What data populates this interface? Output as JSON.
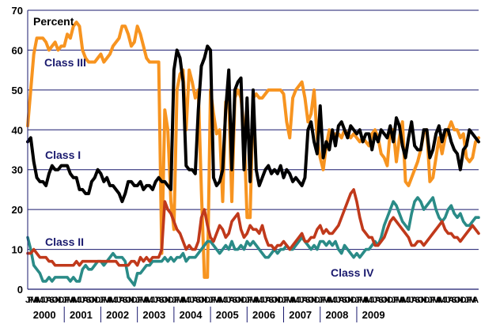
{
  "chart_data": {
    "type": "line",
    "title": "",
    "ylabel": "Percent",
    "xlabel": "",
    "ylim": [
      0,
      70
    ],
    "yticks": [
      0,
      10,
      20,
      30,
      40,
      50,
      60,
      70
    ],
    "grid": true,
    "legend": "none",
    "x_start": "2000-01",
    "month_initials": [
      "J",
      "F",
      "M",
      "A",
      "M",
      "J",
      "J",
      "A",
      "S",
      "O",
      "N",
      "D"
    ],
    "years": [
      "2000",
      "2001",
      "2002",
      "2003",
      "2004",
      "2005",
      "2006",
      "2007",
      "2008",
      "2009"
    ],
    "series": [
      {
        "name": "Class I",
        "color": "#000000",
        "values": [
          37,
          38,
          32,
          28,
          27,
          27,
          26,
          29,
          31,
          30,
          30,
          31,
          31,
          31,
          29,
          28,
          28,
          25,
          25,
          24,
          24,
          27,
          28,
          30,
          29,
          27,
          28,
          26,
          26,
          25,
          24,
          22,
          24,
          27,
          27,
          26,
          26,
          27,
          25,
          26,
          26,
          25,
          27,
          28,
          27,
          27,
          26,
          25,
          55,
          60,
          58,
          52,
          31,
          30,
          30,
          29,
          45,
          56,
          58,
          61,
          60,
          28,
          26,
          27,
          30,
          45,
          55,
          30,
          50,
          52,
          53,
          30,
          48,
          27,
          50,
          30,
          26,
          28,
          30,
          31,
          29,
          30,
          29,
          31,
          28,
          30,
          29,
          27,
          28,
          27,
          26,
          28,
          40,
          42,
          37,
          34,
          46,
          33,
          37,
          35,
          40,
          36,
          41,
          42,
          40,
          38,
          41,
          40,
          39,
          40,
          37,
          39,
          39,
          35,
          39,
          37,
          40,
          39,
          38,
          41,
          37,
          43,
          41,
          36,
          33,
          38,
          42,
          36,
          35,
          35,
          40,
          40,
          33,
          35,
          39,
          41,
          37,
          40,
          40,
          37,
          35,
          34,
          30,
          35,
          36,
          40,
          39,
          38,
          37
        ]
      },
      {
        "name": "Class II",
        "color": "#c0391b",
        "values": [
          9,
          9,
          10,
          9,
          8,
          8,
          8,
          7,
          7,
          6,
          6,
          6,
          6,
          6,
          6,
          6,
          7,
          6,
          7,
          7,
          7,
          7,
          7,
          7,
          7,
          7,
          7,
          7,
          7,
          7,
          6,
          6,
          6,
          6,
          7,
          7,
          6,
          8,
          7,
          8,
          7,
          8,
          8,
          8,
          10,
          22,
          20,
          19,
          17,
          15,
          14,
          12,
          10,
          11,
          10,
          10,
          12,
          18,
          20,
          16,
          13,
          12,
          14,
          16,
          15,
          13,
          14,
          17,
          18,
          19,
          15,
          13,
          14,
          16,
          15,
          15,
          14,
          16,
          13,
          11,
          11,
          10,
          11,
          11,
          12,
          11,
          10,
          11,
          12,
          13,
          14,
          12,
          12,
          13,
          13,
          15,
          16,
          14,
          15,
          14,
          14,
          15,
          16,
          18,
          20,
          22,
          24,
          25,
          22,
          18,
          15,
          14,
          13,
          13,
          11,
          11,
          12,
          13,
          15,
          17,
          18,
          17,
          16,
          15,
          14,
          13,
          11,
          11,
          12,
          12,
          11,
          12,
          13,
          14,
          15,
          16,
          17,
          15,
          14,
          14,
          13,
          13,
          12,
          13,
          14,
          15,
          16,
          15,
          14
        ]
      },
      {
        "name": "Class III",
        "color": "#f79420",
        "values": [
          41,
          50,
          59,
          63,
          63,
          63,
          62,
          60,
          61,
          62,
          60,
          61,
          61,
          64,
          63,
          66,
          67,
          66,
          60,
          58,
          57,
          57,
          57,
          58,
          59,
          57,
          58,
          59,
          61,
          62,
          63,
          66,
          66,
          64,
          61,
          62,
          66,
          64,
          61,
          58,
          57,
          57,
          57,
          57,
          9,
          45,
          40,
          22,
          15,
          50,
          54,
          55,
          40,
          55,
          52,
          48,
          50,
          25,
          3,
          3,
          50,
          44,
          39,
          40,
          22,
          47,
          48,
          22,
          48,
          50,
          48,
          40,
          18,
          18,
          48,
          49,
          48,
          48,
          49,
          50,
          50,
          50,
          50,
          50,
          49,
          42,
          38,
          48,
          50,
          51,
          52,
          48,
          42,
          44,
          50,
          38,
          33,
          30,
          36,
          40,
          38,
          39,
          39,
          38,
          40,
          39,
          38,
          39,
          38,
          37,
          38,
          37,
          36,
          39,
          40,
          38,
          34,
          33,
          31,
          40,
          40,
          32,
          38,
          42,
          27,
          26,
          28,
          30,
          32,
          35,
          39,
          40,
          27,
          28,
          33,
          38,
          34,
          38,
          40,
          42,
          40,
          40,
          38,
          39,
          33,
          32,
          33,
          37,
          38
        ]
      },
      {
        "name": "Class IV",
        "color": "#2a8b87",
        "values": [
          13,
          10,
          6,
          5,
          4,
          2,
          2,
          3,
          2,
          3,
          3,
          3,
          3,
          3,
          2,
          3,
          2,
          2,
          5,
          6,
          5,
          5,
          6,
          7,
          7,
          6,
          7,
          8,
          9,
          8,
          8,
          8,
          7,
          3,
          2,
          1,
          4,
          4,
          5,
          6,
          6,
          7,
          7,
          7,
          7,
          8,
          7,
          8,
          7,
          8,
          8,
          9,
          7,
          8,
          8,
          8,
          9,
          10,
          11,
          12,
          12,
          11,
          10,
          9,
          10,
          11,
          10,
          12,
          10,
          10,
          11,
          10,
          12,
          11,
          12,
          11,
          10,
          9,
          8,
          8,
          9,
          10,
          9,
          10,
          10,
          11,
          10,
          10,
          11,
          12,
          13,
          12,
          11,
          10,
          11,
          10,
          12,
          12,
          11,
          12,
          11,
          12,
          10,
          9,
          11,
          10,
          9,
          8,
          9,
          8,
          9,
          10,
          10,
          11,
          12,
          11,
          13,
          16,
          18,
          20,
          22,
          21,
          19,
          17,
          16,
          15,
          19,
          22,
          23,
          22,
          20,
          21,
          22,
          23,
          20,
          18,
          17,
          18,
          20,
          21,
          19,
          18,
          19,
          17,
          16,
          16,
          17,
          18,
          18
        ]
      }
    ],
    "series_labels": [
      {
        "text": "Class III",
        "series": "Class III"
      },
      {
        "text": "Class I",
        "series": "Class I"
      },
      {
        "text": "Class II",
        "series": "Class II"
      },
      {
        "text": "Class IV",
        "series": "Class IV"
      }
    ]
  }
}
